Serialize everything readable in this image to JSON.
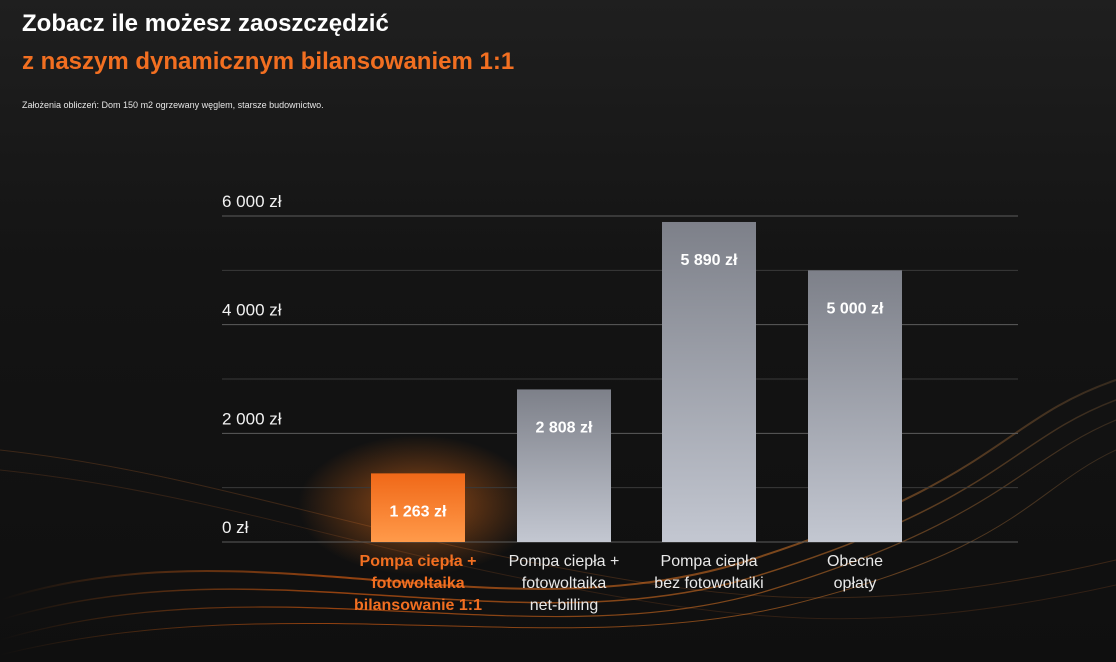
{
  "header": {
    "title": "Zobacz ile możesz zaoszczędzić",
    "subtitle": "z naszym dynamicznym bilansowaniem 1:1",
    "note": "Założenia obliczeń: Dom 150 m2 ogrzewany węglem, starsze budownictwo."
  },
  "colors": {
    "accent": "#f26f21",
    "bar_gray": "#a9adb8"
  },
  "chart_data": {
    "type": "bar",
    "categories": [
      "Pompa ciepła +\nfotowoltaika\nbilansowanie 1:1",
      "Pompa ciepła +\nfotowoltaika\nnet-billing",
      "Pompa ciepła\nbez fotowoltaiki",
      "Obecne\nopłaty"
    ],
    "values": [
      1263,
      2808,
      5890,
      5000
    ],
    "value_labels": [
      "1 263 zł",
      "2 808 zł",
      "5 890 zł",
      "5 000 zł"
    ],
    "highlighted_index": 0,
    "ylim": [
      0,
      6000
    ],
    "yticks": [
      0,
      2000,
      4000,
      6000
    ],
    "ytick_labels": [
      "0 zł",
      "2 000 zł",
      "4 000 zł",
      "6 000 zł"
    ],
    "grid": true
  }
}
